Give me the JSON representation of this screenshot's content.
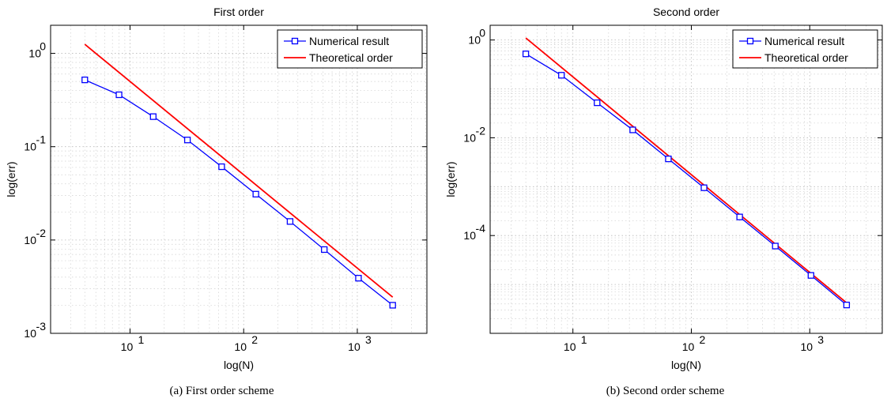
{
  "colors": {
    "numerical": "#0000ff",
    "theoretical": "#ff0000"
  },
  "panels": [
    {
      "caption": "(a) First order scheme",
      "chart_data": {
        "type": "line",
        "title": "First order",
        "xlabel": "log(N)",
        "ylabel": "log(err)",
        "xscale": "log",
        "yscale": "log",
        "xlim": [
          2,
          4096
        ],
        "ylim": [
          0.001,
          2
        ],
        "grid": true,
        "legend_position": "top-right",
        "xticks": [
          {
            "base": "10",
            "exp": "1",
            "value": 10
          },
          {
            "base": "10",
            "exp": "2",
            "value": 100
          },
          {
            "base": "10",
            "exp": "3",
            "value": 1000
          }
        ],
        "yticks": [
          {
            "base": "10",
            "exp": "-3",
            "value": 0.001
          },
          {
            "base": "10",
            "exp": "-2",
            "value": 0.01
          },
          {
            "base": "10",
            "exp": "-1",
            "value": 0.1
          },
          {
            "base": "10",
            "exp": "0",
            "value": 1
          }
        ],
        "series": [
          {
            "name": "Numerical result",
            "color": "#0000ff",
            "marker": "square",
            "x": [
              4,
              8,
              16,
              32,
              64,
              128,
              256,
              512,
              1024,
              2048
            ],
            "y": [
              0.52,
              0.36,
              0.21,
              0.118,
              0.061,
              0.031,
              0.0158,
              0.0079,
              0.0039,
              0.002
            ]
          },
          {
            "name": "Theoretical order",
            "color": "#ff0000",
            "marker": "none",
            "x": [
              4,
              2048
            ],
            "y": [
              1.25,
              0.00244
            ]
          }
        ]
      }
    },
    {
      "caption": "(b) Second order scheme",
      "chart_data": {
        "type": "line",
        "title": "Second order",
        "xlabel": "log(N)",
        "ylabel": "log(err)",
        "xscale": "log",
        "yscale": "log",
        "xlim": [
          2,
          4096
        ],
        "ylim": [
          1e-06,
          2
        ],
        "grid": true,
        "legend_position": "top-right",
        "xticks": [
          {
            "base": "10",
            "exp": "1",
            "value": 10
          },
          {
            "base": "10",
            "exp": "2",
            "value": 100
          },
          {
            "base": "10",
            "exp": "3",
            "value": 1000
          }
        ],
        "yticks": [
          {
            "base": "10",
            "exp": "-4",
            "value": 0.0001
          },
          {
            "base": "10",
            "exp": "-2",
            "value": 0.01
          },
          {
            "base": "10",
            "exp": "0",
            "value": 1
          }
        ],
        "series": [
          {
            "name": "Numerical result",
            "color": "#0000ff",
            "marker": "square",
            "x": [
              4,
              8,
              16,
              32,
              64,
              128,
              256,
              512,
              1024,
              2048
            ],
            "y": [
              0.52,
              0.19,
              0.052,
              0.0145,
              0.0037,
              0.00095,
              0.00024,
              6.1e-05,
              1.53e-05,
              3.8e-06
            ]
          },
          {
            "name": "Theoretical order",
            "color": "#ff0000",
            "marker": "none",
            "x": [
              4,
              2048
            ],
            "y": [
              1.1,
              4.2e-06
            ]
          }
        ]
      }
    }
  ]
}
